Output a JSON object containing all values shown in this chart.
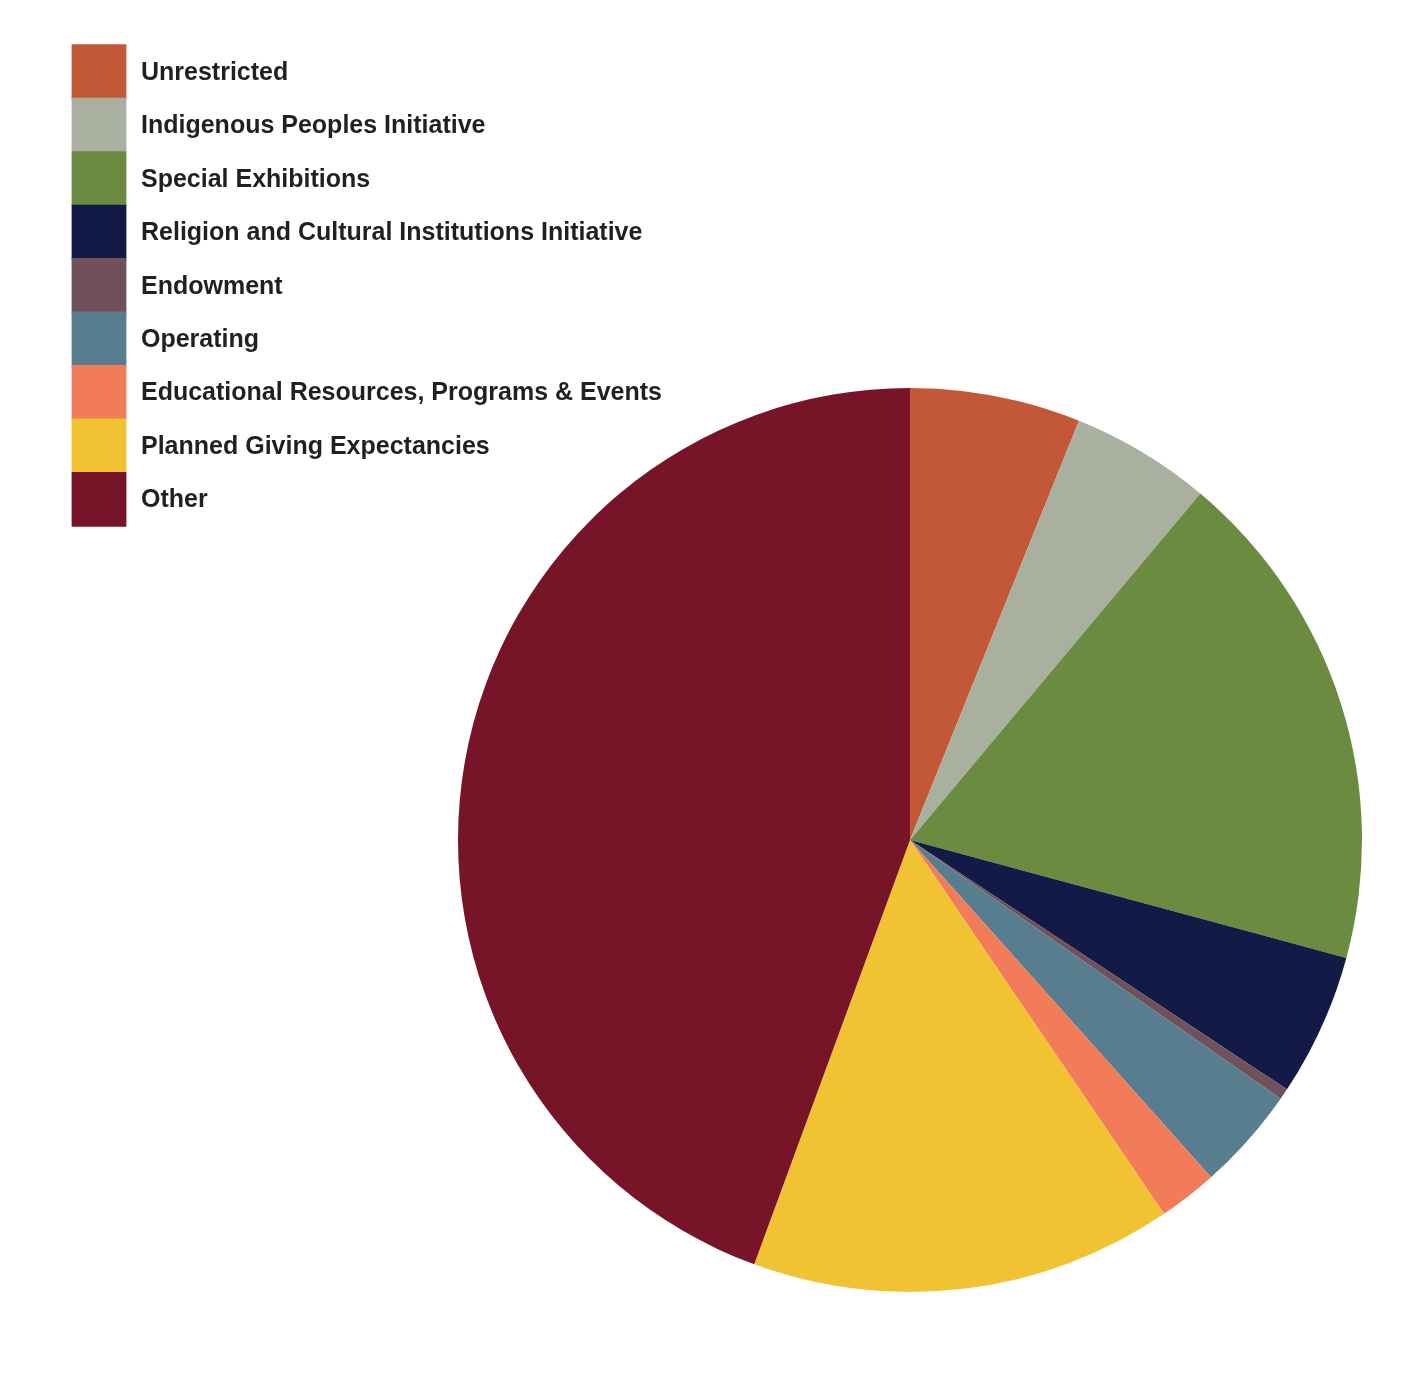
{
  "chart_data": {
    "type": "pie",
    "categories": [
      "Unrestricted",
      "Indigenous Peoples Initiative",
      "Special Exhibitions",
      "Religion and Cultural Institutions Initiative",
      "Endowment",
      "Operating",
      "Educational Resources, Programs & Events",
      "Planned Giving Expectancies",
      "Other"
    ],
    "values": [
      6.1,
      5.0,
      18.1,
      5.1,
      0.4,
      3.7,
      2.1,
      15.1,
      44.4
    ],
    "colors": [
      "#c25837",
      "#aab0a0",
      "#6b8b40",
      "#121a45",
      "#70505a",
      "#587d8e",
      "#f27c5a",
      "#f1c232",
      "#771427"
    ],
    "legend": "top left"
  }
}
